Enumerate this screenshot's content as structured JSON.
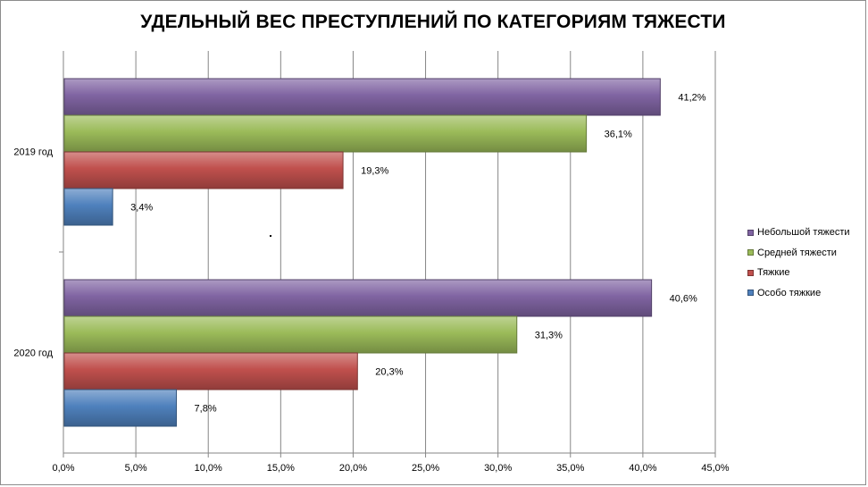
{
  "chart_data": {
    "type": "bar",
    "orientation": "horizontal",
    "title": "УДЕЛЬНЫЙ ВЕС ПРЕСТУПЛЕНИЙ ПО КАТЕГОРИЯМ ТЯЖЕСТИ",
    "xlabel": "",
    "ylabel": "",
    "categories": [
      "2019 год",
      "2020 год"
    ],
    "series": [
      {
        "name": "Небольшой тяжести",
        "values": [
          41.2,
          40.6
        ],
        "labels": [
          "41,2%",
          "40,6%"
        ],
        "color": "#8064a2"
      },
      {
        "name": "Средней тяжести",
        "values": [
          36.1,
          31.3
        ],
        "labels": [
          "36,1%",
          "31,3%"
        ],
        "color": "#9bbb59"
      },
      {
        "name": "Тяжкие",
        "values": [
          19.3,
          20.3
        ],
        "labels": [
          "19,3%",
          "20,3%"
        ],
        "color": "#c0504d"
      },
      {
        "name": "Особо тяжкие",
        "values": [
          3.4,
          7.8
        ],
        "labels": [
          "3,4%",
          "7,8%"
        ],
        "color": "#4f81bd"
      }
    ],
    "xlim": [
      0,
      45
    ],
    "xticks": [
      0,
      5,
      10,
      15,
      20,
      25,
      30,
      35,
      40,
      45
    ],
    "xtick_labels": [
      "0,0%",
      "5,0%",
      "10,0%",
      "15,0%",
      "20,0%",
      "25,0%",
      "30,0%",
      "35,0%",
      "40,0%",
      "45,0%"
    ],
    "grid": true,
    "legend_position": "right"
  }
}
